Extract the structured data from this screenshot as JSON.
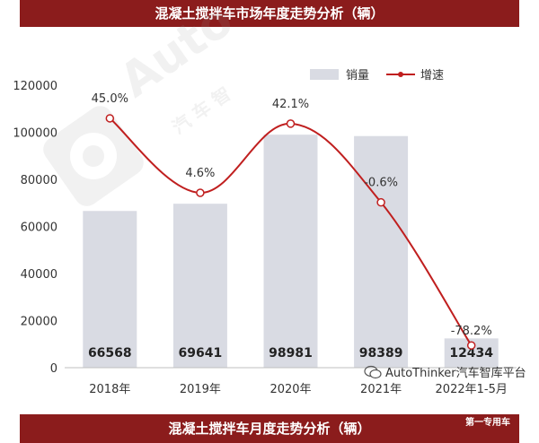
{
  "header": {
    "title": "混凝土搅拌车市场年度走势分析（辆）"
  },
  "footer": {
    "title": "混凝土搅拌车月度走势分析（辆）",
    "tag": "第一专用车"
  },
  "watermark": {
    "brand": "AutoThinker汽车智库平台",
    "logo_text": "Auto",
    "logo_cn": "汽 车 智"
  },
  "chart_data": {
    "type": "bar",
    "categories": [
      "2018年",
      "2019年",
      "2020年",
      "2021年",
      "2022年1-5月"
    ],
    "series": [
      {
        "name": "销量",
        "type": "bar",
        "values": [
          66568,
          69641,
          98981,
          98389,
          12434
        ]
      },
      {
        "name": "增速",
        "type": "line",
        "values": [
          45.0,
          4.6,
          42.1,
          -0.6,
          -78.2
        ]
      }
    ],
    "bar_labels": [
      "66568",
      "69641",
      "98981",
      "98389",
      "12434"
    ],
    "line_labels": [
      "45.0%",
      "4.6%",
      "42.1%",
      "-0.6%",
      "-78.2%"
    ],
    "y_ticks": [
      "0",
      "20000",
      "40000",
      "60000",
      "80000",
      "100000",
      "120000"
    ],
    "ylim": [
      0,
      120000
    ],
    "colors": {
      "bar": "#d9dbe3",
      "line": "#c01f1f",
      "marker_fill": "#ffffff"
    },
    "legend_position": "top-right"
  }
}
